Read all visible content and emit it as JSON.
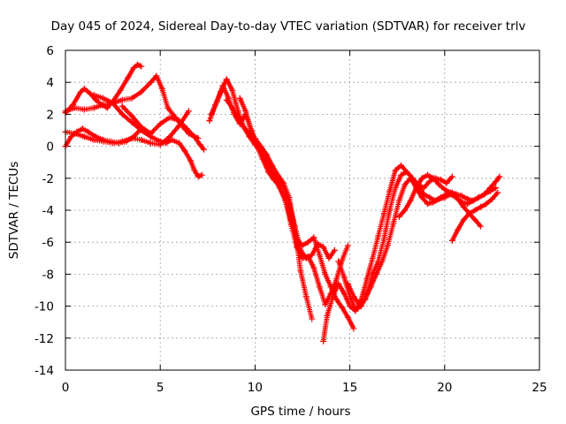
{
  "chart_data": {
    "type": "scatter",
    "title": "Day 045 of 2024, Sidereal Day-to-day VTEC variation (SDTVAR) for receiver trlv",
    "xlabel": "GPS time / hours",
    "ylabel": "SDTVAR / TECUs",
    "xlim": [
      0,
      25
    ],
    "ylim": [
      -14,
      6
    ],
    "xticks": [
      0,
      5,
      10,
      15,
      20,
      25
    ],
    "yticks": [
      -14,
      -12,
      -10,
      -8,
      -6,
      -4,
      -2,
      0,
      2,
      4,
      6
    ],
    "grid": true,
    "marker": "+",
    "color": "#ff0000",
    "series": [
      {
        "x": [
          0.0,
          0.4,
          0.8,
          1.0,
          1.3,
          1.6,
          1.9,
          2.2,
          2.5,
          2.9,
          3.3,
          3.6,
          3.8,
          4.0
        ],
        "y": [
          2.1,
          2.6,
          3.4,
          3.6,
          3.3,
          2.9,
          2.6,
          2.4,
          2.8,
          3.5,
          4.3,
          4.9,
          5.1,
          5.0
        ]
      },
      {
        "x": [
          0.0,
          0.5,
          1.0,
          1.5,
          2.0,
          2.5,
          3.0,
          3.5,
          4.0,
          4.5,
          4.8,
          5.1,
          5.4,
          5.8,
          6.2,
          6.5,
          6.8,
          7.0
        ],
        "y": [
          2.2,
          2.4,
          2.3,
          2.4,
          2.6,
          2.7,
          2.9,
          3.0,
          3.4,
          4.0,
          4.4,
          3.6,
          2.4,
          1.8,
          1.2,
          0.8,
          0.6,
          0.5
        ]
      },
      {
        "x": [
          0.0,
          0.3,
          0.6,
          0.9,
          1.2,
          1.6,
          2.0,
          2.4,
          2.8,
          3.2,
          3.6,
          4.0
        ],
        "y": [
          0.0,
          0.6,
          0.9,
          1.1,
          0.9,
          0.6,
          0.4,
          0.3,
          0.2,
          0.3,
          0.6,
          1.1
        ]
      },
      {
        "x": [
          1.5,
          2.0,
          2.5,
          3.0,
          3.5,
          4.0,
          4.5,
          5.0,
          5.3,
          5.6,
          6.0,
          6.3,
          6.6,
          6.8,
          7.0,
          7.2
        ],
        "y": [
          3.2,
          3.0,
          2.7,
          2.0,
          1.5,
          1.0,
          0.6,
          0.3,
          0.2,
          0.4,
          0.2,
          -0.3,
          -0.9,
          -1.5,
          -1.9,
          -1.8
        ]
      },
      {
        "x": [
          3.0,
          3.5,
          4.0,
          4.5,
          5.0,
          5.5,
          6.0,
          6.4,
          6.8,
          7.1,
          7.3
        ],
        "y": [
          2.5,
          1.9,
          1.2,
          0.8,
          1.4,
          1.8,
          1.6,
          1.1,
          0.6,
          0.1,
          -0.2
        ]
      },
      {
        "x": [
          0.0,
          0.5,
          1.0,
          1.5,
          2.0,
          2.5,
          3.0,
          3.5,
          4.0,
          4.5,
          5.0,
          5.5,
          6.0,
          6.5
        ],
        "y": [
          0.9,
          0.8,
          0.6,
          0.4,
          0.3,
          0.2,
          0.3,
          0.5,
          0.4,
          0.2,
          0.1,
          0.6,
          1.3,
          2.2
        ]
      },
      {
        "x": [
          7.6,
          7.9,
          8.2,
          8.5,
          8.8,
          9.1,
          9.4,
          9.7,
          10.0,
          10.3,
          10.6,
          10.9,
          11.2,
          11.5,
          11.8,
          12.0,
          12.2,
          12.4,
          12.7,
          13.0
        ],
        "y": [
          1.6,
          2.6,
          3.4,
          4.2,
          3.5,
          2.2,
          1.2,
          0.8,
          0.5,
          0.0,
          -0.5,
          -1.2,
          -1.8,
          -2.3,
          -3.2,
          -4.6,
          -6.0,
          -7.8,
          -9.4,
          -10.8
        ]
      },
      {
        "x": [
          7.7,
          8.0,
          8.3,
          8.6,
          8.9,
          9.2,
          9.5,
          9.8,
          10.1,
          10.4,
          10.7,
          11.0,
          11.3,
          11.6,
          11.9,
          12.2,
          12.5,
          12.8,
          13.1,
          13.4,
          13.7,
          14.0,
          14.3,
          14.6,
          14.9,
          15.2
        ],
        "y": [
          2.0,
          2.8,
          3.8,
          3.0,
          2.0,
          1.4,
          2.0,
          1.0,
          0.2,
          -0.6,
          -1.3,
          -2.0,
          -2.6,
          -3.4,
          -4.6,
          -5.8,
          -6.2,
          -6.0,
          -5.7,
          -6.8,
          -8.0,
          -8.8,
          -9.6,
          -10.1,
          -10.7,
          -11.4
        ]
      },
      {
        "x": [
          8.5,
          8.8,
          9.1,
          9.4,
          9.7,
          10.0,
          10.3,
          10.6,
          10.9,
          11.2,
          11.5,
          11.8,
          12.1,
          12.4,
          12.7,
          13.0,
          13.3,
          13.6,
          13.9,
          14.2
        ],
        "y": [
          2.9,
          2.4,
          1.8,
          1.2,
          0.6,
          0.1,
          -0.3,
          -0.9,
          -1.6,
          -2.0,
          -2.5,
          -3.6,
          -5.0,
          -6.5,
          -7.0,
          -6.8,
          -6.1,
          -6.3,
          -7.0,
          -6.5
        ]
      },
      {
        "x": [
          9.2,
          9.5,
          9.8,
          10.1,
          10.4,
          10.7,
          11.0,
          11.3,
          11.6,
          11.9,
          12.2,
          12.5,
          12.8,
          13.1,
          13.4,
          13.7,
          14.0,
          14.3,
          14.6,
          14.9
        ],
        "y": [
          3.0,
          2.2,
          1.0,
          0.0,
          -0.8,
          -1.6,
          -2.1,
          -2.4,
          -3.4,
          -4.9,
          -6.3,
          -7.0,
          -6.9,
          -7.6,
          -8.8,
          -9.9,
          -9.2,
          -8.3,
          -7.1,
          -6.2
        ]
      },
      {
        "x": [
          13.6,
          13.8,
          14.1,
          14.4,
          14.7,
          15.0,
          15.3,
          15.6,
          15.9,
          16.2,
          16.5,
          16.8,
          17.1,
          17.4,
          17.7,
          18.0,
          18.3,
          18.6,
          18.9,
          19.2,
          19.5,
          19.8,
          20.1,
          20.4
        ],
        "y": [
          -12.2,
          -10.6,
          -9.4,
          -8.6,
          -9.2,
          -10.0,
          -10.3,
          -9.6,
          -8.3,
          -7.0,
          -5.6,
          -4.2,
          -2.8,
          -1.5,
          -1.2,
          -1.6,
          -2.0,
          -2.4,
          -2.6,
          -2.2,
          -2.0,
          -2.1,
          -2.3,
          -1.9
        ]
      },
      {
        "x": [
          14.4,
          14.7,
          15.0,
          15.3,
          15.6,
          15.9,
          16.2,
          16.5,
          16.8,
          17.1,
          17.4,
          17.7,
          18.0,
          18.3,
          18.6,
          18.9,
          19.2,
          19.5,
          19.8,
          20.1,
          20.4,
          20.7,
          21.0,
          21.3,
          21.6,
          21.9
        ],
        "y": [
          -7.2,
          -8.2,
          -9.4,
          -10.2,
          -10.0,
          -9.2,
          -8.0,
          -7.2,
          -5.8,
          -4.0,
          -2.6,
          -1.8,
          -1.6,
          -2.0,
          -2.5,
          -3.0,
          -3.2,
          -3.4,
          -3.2,
          -3.0,
          -2.9,
          -3.3,
          -3.8,
          -4.2,
          -4.6,
          -5.0
        ]
      },
      {
        "x": [
          14.9,
          15.2,
          15.5,
          15.8,
          16.1,
          16.4,
          16.7,
          17.0,
          17.3,
          17.6,
          17.9,
          18.2,
          18.5,
          18.8,
          19.1,
          19.4,
          19.7,
          20.0,
          20.3,
          20.6,
          20.9,
          21.2,
          21.5,
          21.8,
          22.1,
          22.4,
          22.7
        ],
        "y": [
          -8.6,
          -9.4,
          -9.9,
          -9.6,
          -8.8,
          -8.0,
          -7.2,
          -6.2,
          -4.8,
          -3.4,
          -2.4,
          -2.0,
          -2.6,
          -3.2,
          -3.6,
          -3.5,
          -3.3,
          -3.2,
          -3.0,
          -3.2,
          -3.5,
          -3.6,
          -3.4,
          -3.2,
          -3.0,
          -2.8,
          -2.6
        ]
      },
      {
        "x": [
          17.6,
          17.9,
          18.2,
          18.5,
          18.8,
          19.1,
          19.4,
          19.7,
          20.0,
          20.3,
          20.6,
          20.9,
          21.2,
          21.5,
          21.8,
          22.1,
          22.4,
          22.7,
          22.9
        ],
        "y": [
          -4.4,
          -4.0,
          -3.4,
          -2.6,
          -2.0,
          -1.8,
          -2.0,
          -2.4,
          -2.7,
          -2.9,
          -3.0,
          -3.1,
          -3.3,
          -3.4,
          -3.2,
          -3.0,
          -2.6,
          -2.2,
          -1.9
        ]
      },
      {
        "x": [
          20.4,
          20.7,
          21.0,
          21.3,
          21.6,
          21.9,
          22.2,
          22.5,
          22.8
        ],
        "y": [
          -5.9,
          -5.2,
          -4.6,
          -4.2,
          -4.0,
          -3.8,
          -3.6,
          -3.3,
          -2.9
        ]
      }
    ]
  }
}
